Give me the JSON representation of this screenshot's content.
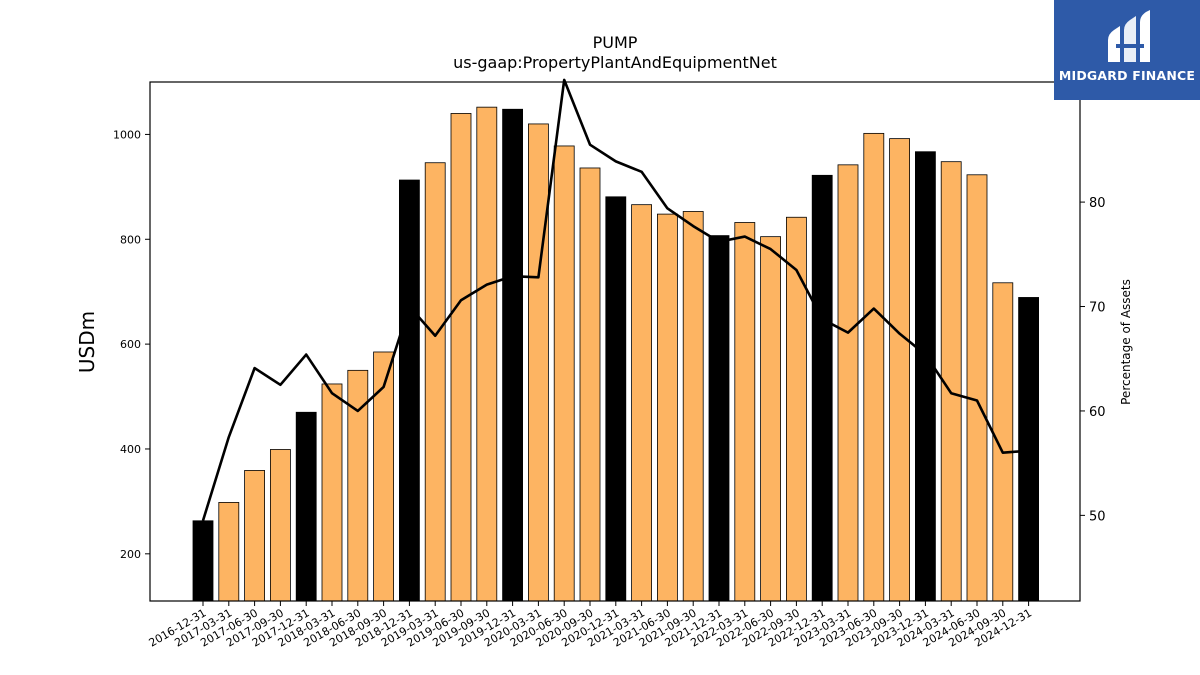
{
  "chart_data": {
    "type": "bar",
    "title": "PUMP",
    "subtitle": "us-gaap:PropertyPlantAndEquipmentNet",
    "ylabel": "USDm",
    "y2label": "Percentage of Assets",
    "ylim": [
      110,
      1100
    ],
    "y2lim": [
      41.8,
      91.5
    ],
    "yticks": [
      200,
      400,
      600,
      800,
      1000
    ],
    "y2ticks": [
      50,
      60,
      70,
      80
    ],
    "categories": [
      "2016-12-31",
      "2017-03-31",
      "2017-06-30",
      "2017-09-30",
      "2017-12-31",
      "2018-03-31",
      "2018-06-30",
      "2018-09-30",
      "2018-12-31",
      "2019-03-31",
      "2019-06-30",
      "2019-09-30",
      "2019-12-31",
      "2020-03-31",
      "2020-06-30",
      "2020-09-30",
      "2020-12-31",
      "2021-03-31",
      "2021-06-30",
      "2021-09-30",
      "2021-12-31",
      "2022-03-31",
      "2022-06-30",
      "2022-09-30",
      "2022-12-31",
      "2023-03-31",
      "2023-06-30",
      "2023-09-30",
      "2023-12-31",
      "2024-03-31",
      "2024-06-30",
      "2024-09-30",
      "2024-12-31"
    ],
    "series": [
      {
        "values": [
          263,
          298,
          359,
          399,
          470,
          524,
          550,
          585,
          913,
          946,
          1040,
          1052,
          1048,
          1020,
          978,
          936,
          881,
          866,
          848,
          853,
          807,
          832,
          805,
          842,
          922,
          942,
          1002,
          992,
          967,
          948,
          923,
          717,
          689
        ],
        "year_end": [
          true,
          false,
          false,
          false,
          true,
          false,
          false,
          false,
          true,
          false,
          false,
          false,
          true,
          false,
          false,
          false,
          true,
          false,
          false,
          false,
          true,
          false,
          false,
          false,
          true,
          false,
          false,
          false,
          true,
          false,
          false,
          false,
          true
        ]
      },
      {
        "values": [
          49.5,
          57.5,
          64.1,
          62.5,
          65.4,
          61.7,
          60.0,
          62.3,
          70.0,
          67.2,
          70.6,
          72.1,
          72.9,
          72.8,
          91.7,
          85.5,
          83.9,
          82.9,
          79.4,
          77.7,
          76.2,
          76.7,
          75.5,
          73.5,
          68.8,
          67.5,
          69.8,
          67.4,
          65.4,
          61.7,
          61.0,
          56.0,
          56.2
        ]
      }
    ],
    "colors": {
      "bar": "#fdb462",
      "bar_year_end": "#000000",
      "line": "#000000"
    },
    "grid": false
  },
  "logo": {
    "text": "MIDGARD FINANCE"
  }
}
